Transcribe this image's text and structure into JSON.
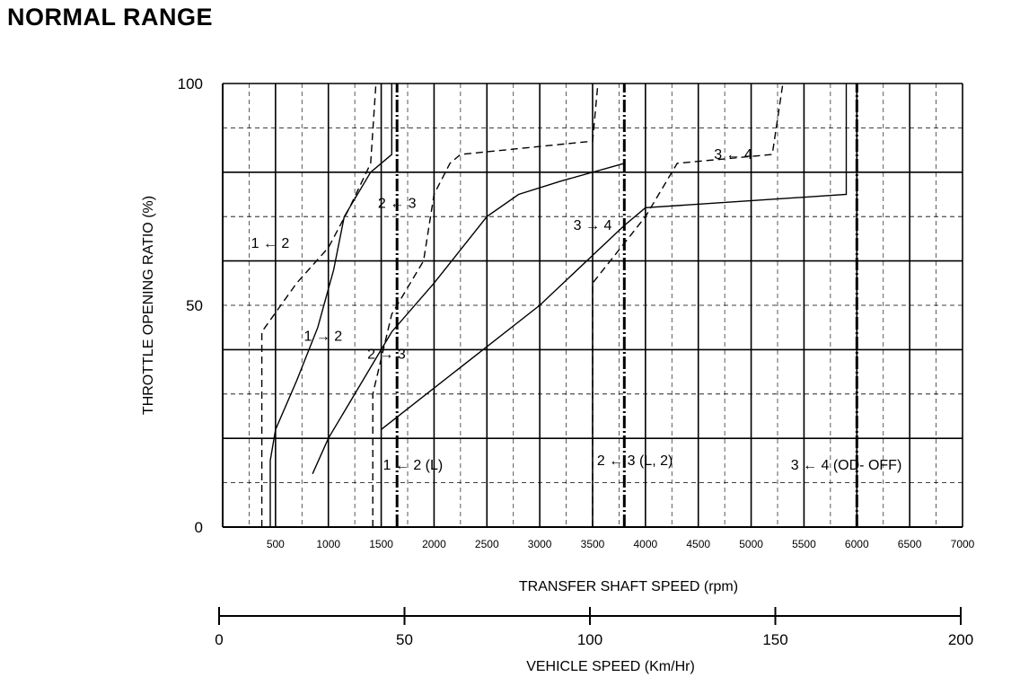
{
  "page": {
    "title": "NORMAL RANGE"
  },
  "chart_data": {
    "type": "line",
    "title": "NORMAL RANGE",
    "xlabel": "TRANSFER SHAFT SPEED (rpm)",
    "ylabel": "THROTTLE OPENING RATIO (%)",
    "xlim": [
      0,
      7000
    ],
    "ylim": [
      0,
      100
    ],
    "x_ticks": [
      500,
      1000,
      1500,
      2000,
      2500,
      3000,
      3500,
      4000,
      4500,
      5000,
      5500,
      6000,
      6500,
      7000
    ],
    "y_ticks": [
      0,
      50,
      100
    ],
    "grid": true,
    "secondary_axis": {
      "label": "VEHICLE SPEED (Km/Hr)",
      "range": [
        0,
        200
      ],
      "ticks": [
        0,
        50,
        100,
        150,
        200
      ]
    },
    "series": [
      {
        "name": "1 ← 2",
        "style": "dashed",
        "points": [
          [
            370,
            0
          ],
          [
            370,
            44
          ],
          [
            700,
            55
          ],
          [
            1000,
            63
          ],
          [
            1200,
            72
          ],
          [
            1400,
            82
          ],
          [
            1450,
            100
          ]
        ]
      },
      {
        "name": "1 → 2",
        "style": "solid",
        "points": [
          [
            450,
            0
          ],
          [
            450,
            15
          ],
          [
            500,
            22
          ],
          [
            700,
            33
          ],
          [
            900,
            45
          ],
          [
            1050,
            58
          ],
          [
            1150,
            70
          ],
          [
            1400,
            80
          ],
          [
            1600,
            84
          ],
          [
            1600,
            100
          ]
        ]
      },
      {
        "name": "2 ← 3",
        "style": "dashed",
        "points": [
          [
            1420,
            0
          ],
          [
            1420,
            30
          ],
          [
            1600,
            48
          ],
          [
            1900,
            60
          ],
          [
            2000,
            75
          ],
          [
            2150,
            82
          ],
          [
            2250,
            84
          ],
          [
            3500,
            87
          ],
          [
            3550,
            100
          ]
        ]
      },
      {
        "name": "2 → 3",
        "style": "solid",
        "points": [
          [
            850,
            12
          ],
          [
            1000,
            20
          ],
          [
            1600,
            44
          ],
          [
            2000,
            55
          ],
          [
            2500,
            70
          ],
          [
            2800,
            75
          ],
          [
            3200,
            78
          ],
          [
            3800,
            82
          ]
        ]
      },
      {
        "name": "3 ← 4",
        "style": "dashed",
        "points": [
          [
            3500,
            0
          ],
          [
            3500,
            55
          ],
          [
            4000,
            70
          ],
          [
            4300,
            82
          ],
          [
            5200,
            84
          ],
          [
            5300,
            100
          ]
        ]
      },
      {
        "name": "3 → 4",
        "style": "solid",
        "points": [
          [
            1500,
            22
          ],
          [
            3000,
            50
          ],
          [
            3800,
            68
          ],
          [
            4000,
            72
          ],
          [
            5900,
            75
          ],
          [
            5900,
            100
          ]
        ]
      },
      {
        "name": "1 ← 2 (L)",
        "style": "solid",
        "points": [
          [
            1650,
            0
          ],
          [
            1650,
            100
          ]
        ]
      },
      {
        "name": "2 ← 3 (L, 2)",
        "style": "solid",
        "points": [
          [
            3800,
            0
          ],
          [
            3800,
            100
          ]
        ]
      },
      {
        "name": "3 ← 4 (OD- OFF)",
        "style": "solid",
        "points": [
          [
            6000,
            0
          ],
          [
            6000,
            100
          ]
        ]
      }
    ],
    "annotations": [
      {
        "text": "1 ← 2",
        "x": 450,
        "y": 63
      },
      {
        "text": "1 → 2",
        "x": 950,
        "y": 42
      },
      {
        "text": "2 ← 3",
        "x": 1650,
        "y": 72
      },
      {
        "text": "2 → 3",
        "x": 1550,
        "y": 38
      },
      {
        "text": "3 → 4",
        "x": 3500,
        "y": 67
      },
      {
        "text": "3 ← 4",
        "x": 4830,
        "y": 83
      },
      {
        "text": "1 ← 2 (L)",
        "x": 1800,
        "y": 13
      },
      {
        "text": "2 ← 3 (L, 2)",
        "x": 3900,
        "y": 14
      },
      {
        "text": "3 ← 4 (OD- OFF)",
        "x": 5900,
        "y": 13
      }
    ]
  }
}
